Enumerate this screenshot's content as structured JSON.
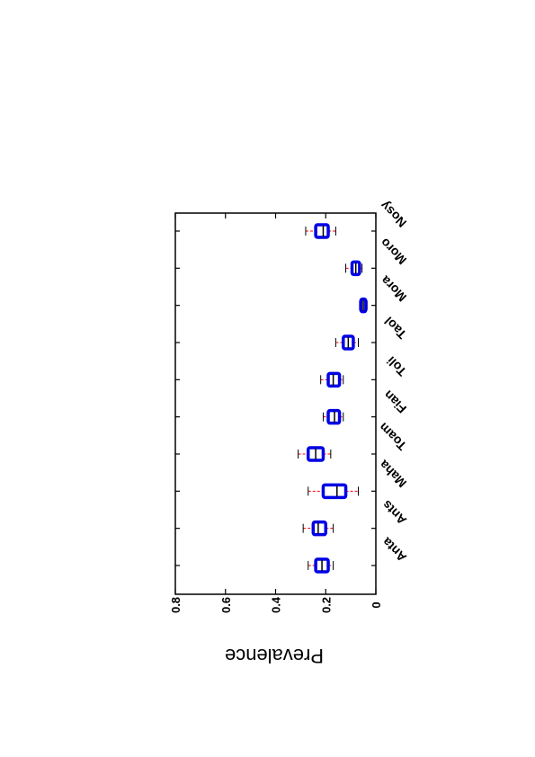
{
  "chart_data": {
    "type": "box",
    "ylabel": "Prevalence",
    "ylim": [
      0,
      0.8
    ],
    "yticks": [
      0,
      0.2,
      0.4,
      0.6,
      0.8
    ],
    "ytick_labels": [
      "0",
      "0.2",
      "0.4",
      "0.6",
      "0.8"
    ],
    "categories": [
      "Anta",
      "Ants",
      "Maha",
      "Toam",
      "Fian",
      "Toli",
      "Taol",
      "Mora",
      "Moro",
      "Nosy"
    ],
    "boxes": [
      {
        "category": "Anta",
        "whisker_low": 0.17,
        "q1": 0.19,
        "median": 0.215,
        "q3": 0.24,
        "whisker_high": 0.27
      },
      {
        "category": "Ants",
        "whisker_low": 0.17,
        "q1": 0.2,
        "median": 0.23,
        "q3": 0.25,
        "whisker_high": 0.29
      },
      {
        "category": "Maha",
        "whisker_low": 0.07,
        "q1": 0.12,
        "median": 0.155,
        "q3": 0.21,
        "whisker_high": 0.27
      },
      {
        "category": "Toam",
        "whisker_low": 0.18,
        "q1": 0.21,
        "median": 0.24,
        "q3": 0.27,
        "whisker_high": 0.31
      },
      {
        "category": "Fian",
        "whisker_low": 0.13,
        "q1": 0.145,
        "median": 0.165,
        "q3": 0.19,
        "whisker_high": 0.21
      },
      {
        "category": "Toli",
        "whisker_low": 0.13,
        "q1": 0.145,
        "median": 0.17,
        "q3": 0.19,
        "whisker_high": 0.22
      },
      {
        "category": "Taol",
        "whisker_low": 0.07,
        "q1": 0.09,
        "median": 0.11,
        "q3": 0.13,
        "whisker_high": 0.16
      },
      {
        "category": "Mora",
        "whisker_low": 0.035,
        "q1": 0.04,
        "median": 0.05,
        "q3": 0.06,
        "whisker_high": 0.065
      },
      {
        "category": "Moro",
        "whisker_low": 0.055,
        "q1": 0.065,
        "median": 0.08,
        "q3": 0.095,
        "whisker_high": 0.12
      },
      {
        "category": "Nosy",
        "whisker_low": 0.16,
        "q1": 0.19,
        "median": 0.21,
        "q3": 0.24,
        "whisker_high": 0.28
      }
    ],
    "colors": {
      "box": "#0000e6",
      "whisker": "#ff0000",
      "frame": "#000000",
      "median": "#000000"
    },
    "grid": false,
    "orientation": "rotated-180-vertical-value-axis"
  }
}
